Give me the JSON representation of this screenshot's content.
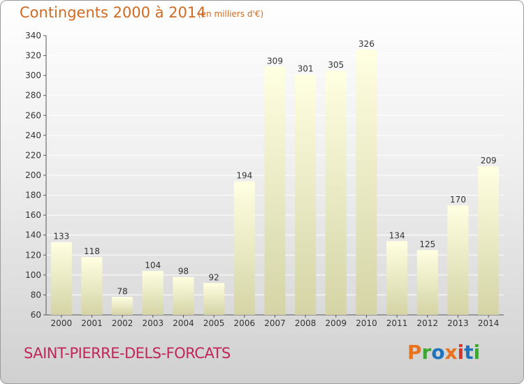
{
  "title": "Contingents 2000 à 2014",
  "unit": "(en milliers d'€)",
  "commune": "SAINT-PIERRE-DELS-FORCATS",
  "logo": {
    "text": "Proxiti",
    "colors": [
      "#e8731e",
      "#3fa535",
      "#1e73be",
      "#e8731e",
      "#d6332a",
      "#1e73be",
      "#3fa535"
    ]
  },
  "colors": {
    "bar_light": "#ffffe0",
    "bar_dark": "#d6d6a8",
    "title": "#d06a20",
    "commune": "#c0265a"
  },
  "chart_data": {
    "type": "bar",
    "categories": [
      "2000",
      "2001",
      "2002",
      "2003",
      "2004",
      "2005",
      "2006",
      "2007",
      "2008",
      "2009",
      "2010",
      "2011",
      "2012",
      "2013",
      "2014"
    ],
    "values": [
      133,
      118,
      78,
      104,
      98,
      92,
      194,
      309,
      301,
      305,
      326,
      134,
      125,
      170,
      209
    ],
    "ylim": [
      60,
      340
    ],
    "yticks": [
      60,
      80,
      100,
      120,
      140,
      160,
      180,
      200,
      220,
      240,
      260,
      280,
      300,
      320,
      340
    ],
    "grid": true
  }
}
